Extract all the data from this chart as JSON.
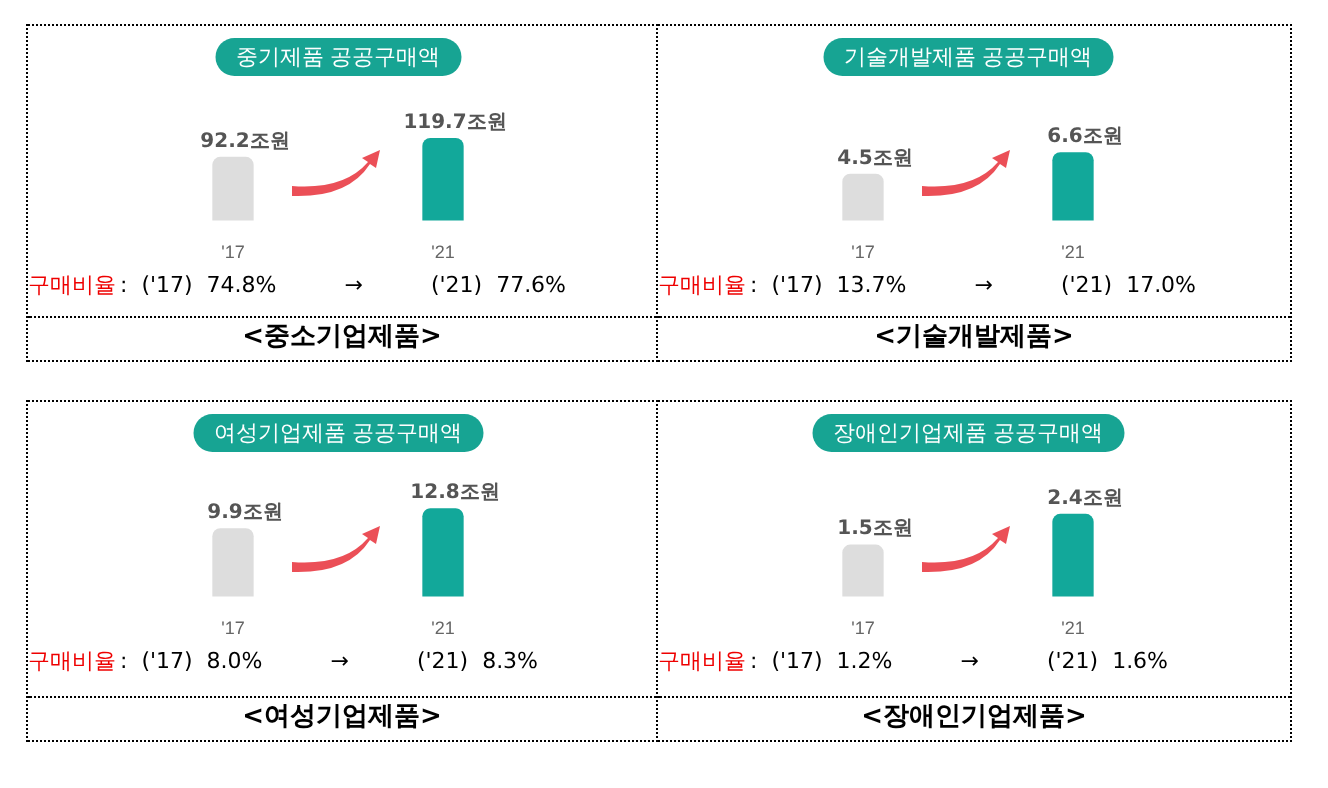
{
  "chart_data": [
    {
      "type": "bar",
      "title": "중기제품 공공구매액",
      "categories": [
        "'17",
        "'21"
      ],
      "values": [
        92.2,
        119.7
      ],
      "colors": [
        "#dddddd",
        "#12a89a"
      ],
      "value_labels": [
        "92.2조원",
        "119.7조원"
      ],
      "annotations": [
        "구매비율",
        ":  ('17)  74.8%",
        "→",
        "('21)  77.6%",
        "<중소기업제품>"
      ]
    },
    {
      "type": "bar",
      "title": "기술개발제품 공공구매액",
      "categories": [
        "'17",
        "'21"
      ],
      "values": [
        4.5,
        6.6
      ],
      "colors": [
        "#dddddd",
        "#12a89a"
      ],
      "value_labels": [
        "4.5조원",
        "6.6조원"
      ],
      "annotations": [
        "구매비율",
        ":  ('17)  13.7%",
        "→",
        "('21)  17.0%",
        "<기술개발제품>"
      ]
    },
    {
      "type": "bar",
      "title": "여성기업제품 공공구매액",
      "categories": [
        "'17",
        "'21"
      ],
      "values": [
        9.9,
        12.8
      ],
      "colors": [
        "#dddddd",
        "#12a89a"
      ],
      "value_labels": [
        "9.9조원",
        "12.8조원"
      ],
      "annotations": [
        "구매비율",
        ":  ('17)  8.0%",
        "→",
        "('21)  8.3%",
        "<여성기업제품>"
      ]
    },
    {
      "type": "bar",
      "title": "장애인기업제품 공공구매액",
      "categories": [
        "'17",
        "'21"
      ],
      "values": [
        1.5,
        2.4
      ],
      "colors": [
        "#dddddd",
        "#12a89a"
      ],
      "value_labels": [
        "1.5조원",
        "2.4조원"
      ],
      "annotations": [
        "구매비율",
        ":  ('17)  1.2%",
        "→",
        "('21)  1.6%",
        "<장애인기업제품>"
      ]
    }
  ]
}
